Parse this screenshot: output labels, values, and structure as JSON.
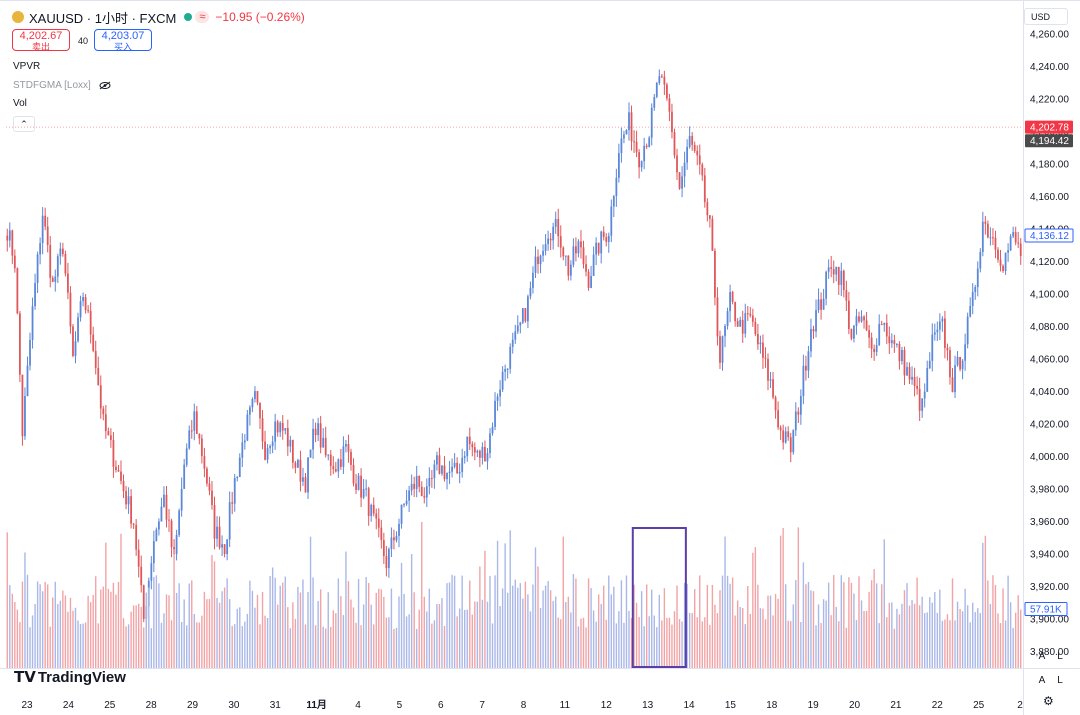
{
  "header": {
    "symbol": "XAUUSD · 1小时 · FXCM",
    "approx_symbol": "≈",
    "change": "−10.95 (−0.26%)",
    "sell_price": "4,202.67",
    "sell_label": "卖出",
    "spread": "40",
    "buy_price": "4,203.07",
    "buy_label": "买入",
    "currency": "USD"
  },
  "indicators": [
    "VPVR",
    "STDFGMA [Loxx]",
    "Vol"
  ],
  "logo_text": "TradingView",
  "buttons": {
    "auto": "A",
    "log": "L"
  },
  "colors": {
    "up": "#5b87d9",
    "down": "#e0575a",
    "vol_up": "#aab8e8",
    "vol_down": "#f2a3a6",
    "last_price": "#f23645",
    "alt_price": "#4a4a4a",
    "highlight_box": "#5c3ea8"
  },
  "chart_data": {
    "type": "candlestick",
    "ylim": [
      3870,
      4265
    ],
    "y_ticks": [
      3880,
      3900,
      3920,
      3940,
      3960,
      3980,
      4000,
      4020,
      4040,
      4060,
      4080,
      4100,
      4120,
      4140,
      4160,
      4180,
      4200,
      4220,
      4240,
      4260
    ],
    "y_tick_labels": [
      "3,880.00",
      "3,900.00",
      "3,920.00",
      "3,940.00",
      "3,960.00",
      "3,980.00",
      "4,000.00",
      "4,020.00",
      "4,040.00",
      "4,060.00",
      "4,080.00",
      "4,100.00",
      "4,120.00",
      "4,140.00",
      "4,160.00",
      "4,180.00",
      "4,200.00",
      "4,220.00",
      "4,240.00",
      "4,260.00"
    ],
    "x_labels": [
      "23",
      "24",
      "25",
      "28",
      "29",
      "30",
      "31",
      "11月",
      "4",
      "5",
      "6",
      "7",
      "8",
      "11",
      "12",
      "13",
      "14",
      "15",
      "18",
      "19",
      "20",
      "21",
      "22",
      "25",
      "2"
    ],
    "price_labels": [
      {
        "text": "4,202.78",
        "value": 4202.78,
        "style": "last"
      },
      {
        "text": "4,194.42",
        "value": 4194.42,
        "style": "alt"
      },
      {
        "text": "4,136.12",
        "value": 4136.12,
        "style": "outline"
      }
    ],
    "volume_label": "57.91K",
    "path": [
      [
        0,
        4140
      ],
      [
        3,
        4120
      ],
      [
        6,
        4015
      ],
      [
        10,
        4090
      ],
      [
        14,
        4150
      ],
      [
        18,
        4105
      ],
      [
        22,
        4130
      ],
      [
        26,
        4060
      ],
      [
        30,
        4100
      ],
      [
        34,
        4070
      ],
      [
        38,
        4020
      ],
      [
        42,
        4000
      ],
      [
        46,
        3980
      ],
      [
        50,
        3960
      ],
      [
        54,
        3900
      ],
      [
        58,
        3950
      ],
      [
        62,
        3975
      ],
      [
        66,
        3935
      ],
      [
        70,
        3995
      ],
      [
        74,
        4025
      ],
      [
        78,
        3995
      ],
      [
        82,
        3955
      ],
      [
        86,
        3945
      ],
      [
        90,
        3985
      ],
      [
        94,
        4015
      ],
      [
        98,
        4035
      ],
      [
        102,
        4005
      ],
      [
        106,
        4020
      ],
      [
        110,
        4015
      ],
      [
        114,
        3995
      ],
      [
        118,
        3985
      ],
      [
        122,
        4020
      ],
      [
        126,
        4000
      ],
      [
        130,
        3995
      ],
      [
        134,
        4005
      ],
      [
        138,
        3985
      ],
      [
        142,
        3975
      ],
      [
        146,
        3955
      ],
      [
        150,
        3935
      ],
      [
        154,
        3955
      ],
      [
        158,
        3975
      ],
      [
        162,
        3985
      ],
      [
        166,
        3975
      ],
      [
        170,
        3995
      ],
      [
        174,
        3990
      ],
      [
        178,
        3990
      ],
      [
        182,
        4010
      ],
      [
        186,
        4000
      ],
      [
        190,
        4005
      ],
      [
        194,
        4040
      ],
      [
        198,
        4060
      ],
      [
        202,
        4075
      ],
      [
        206,
        4095
      ],
      [
        210,
        4125
      ],
      [
        214,
        4140
      ],
      [
        218,
        4140
      ],
      [
        222,
        4115
      ],
      [
        226,
        4130
      ],
      [
        230,
        4110
      ],
      [
        234,
        4130
      ],
      [
        238,
        4140
      ],
      [
        242,
        4190
      ],
      [
        246,
        4205
      ],
      [
        250,
        4185
      ],
      [
        254,
        4200
      ],
      [
        258,
        4235
      ],
      [
        262,
        4210
      ],
      [
        266,
        4165
      ],
      [
        270,
        4195
      ],
      [
        274,
        4175
      ],
      [
        278,
        4140
      ],
      [
        282,
        4060
      ],
      [
        286,
        4095
      ],
      [
        290,
        4080
      ],
      [
        294,
        4085
      ],
      [
        298,
        4065
      ],
      [
        302,
        4045
      ],
      [
        306,
        4015
      ],
      [
        310,
        4005
      ],
      [
        314,
        4040
      ],
      [
        318,
        4080
      ],
      [
        322,
        4095
      ],
      [
        326,
        4120
      ],
      [
        330,
        4110
      ],
      [
        334,
        4075
      ],
      [
        338,
        4085
      ],
      [
        342,
        4065
      ],
      [
        346,
        4085
      ],
      [
        350,
        4070
      ],
      [
        354,
        4060
      ],
      [
        358,
        4045
      ],
      [
        362,
        4030
      ],
      [
        366,
        4070
      ],
      [
        370,
        4080
      ],
      [
        374,
        4045
      ],
      [
        378,
        4065
      ],
      [
        382,
        4095
      ],
      [
        386,
        4145
      ],
      [
        390,
        4135
      ],
      [
        394,
        4120
      ],
      [
        398,
        4135
      ],
      [
        401,
        4125
      ]
    ],
    "volume_range": [
      0,
      1
    ],
    "highlight_box": {
      "x_range": [
        248,
        268
      ]
    }
  }
}
